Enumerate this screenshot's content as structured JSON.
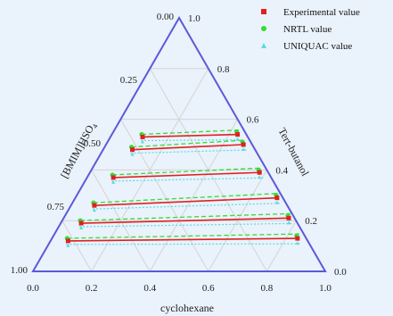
{
  "chart_data": {
    "type": "scatter",
    "subtype": "ternary",
    "axes": {
      "bottom": {
        "label": "cyclohexane",
        "ticks": [
          "0.0",
          "0.2",
          "0.4",
          "0.6",
          "0.8",
          "1.0"
        ]
      },
      "right": {
        "label": "Tert-butanol",
        "ticks": [
          "0.0",
          "0.2",
          "0.4",
          "0.6",
          "0.8",
          "1.0"
        ]
      },
      "left": {
        "label": "[BMIM]HSO4",
        "ticks": [
          "1.00",
          "0.75",
          "0.50",
          "0.25",
          "0.00"
        ]
      }
    },
    "grid": true,
    "legend": {
      "placement": "top-right",
      "entries": [
        {
          "label": "Experimental value",
          "color": "#e02020",
          "marker": "square"
        },
        {
          "label": "NRTL value",
          "color": "#33dd33",
          "marker": "circle"
        },
        {
          "label": "UNIQUAC value",
          "color": "#55dde0",
          "marker": "triangle"
        }
      ]
    },
    "tie_lines": [
      {
        "left": {
          "cyclohexane": 0.06,
          "tert_butanol": 0.12
        },
        "right": {
          "cyclohexane": 0.84,
          "tert_butanol": 0.13
        }
      },
      {
        "left": {
          "cyclohexane": 0.07,
          "tert_butanol": 0.19
        },
        "right": {
          "cyclohexane": 0.77,
          "tert_butanol": 0.21
        }
      },
      {
        "left": {
          "cyclohexane": 0.08,
          "tert_butanol": 0.26
        },
        "right": {
          "cyclohexane": 0.69,
          "tert_butanol": 0.29
        }
      },
      {
        "left": {
          "cyclohexane": 0.09,
          "tert_butanol": 0.37
        },
        "right": {
          "cyclohexane": 0.58,
          "tert_butanol": 0.39
        }
      },
      {
        "left": {
          "cyclohexane": 0.1,
          "tert_butanol": 0.48
        },
        "right": {
          "cyclohexane": 0.47,
          "tert_butanol": 0.5
        }
      },
      {
        "left": {
          "cyclohexane": 0.11,
          "tert_butanol": 0.53
        },
        "right": {
          "cyclohexane": 0.43,
          "tert_butanol": 0.54
        }
      }
    ],
    "colors": {
      "frame": "#5a5ad8",
      "grid": "#d4d4d4",
      "experimental": "#e02020",
      "nrtl": "#33dd33",
      "uniquac": "#55dde0"
    }
  }
}
